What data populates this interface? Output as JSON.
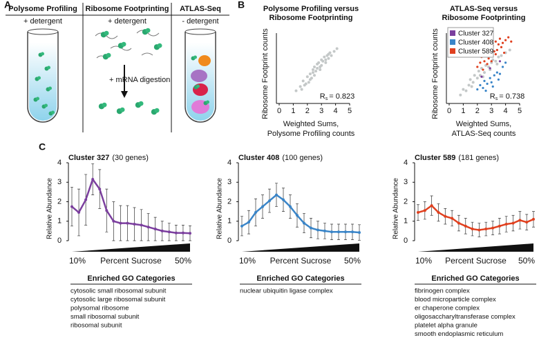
{
  "panel_labels": [
    "A",
    "B",
    "C"
  ],
  "diagram": {
    "columns": [
      {
        "title": "Polysome Profiling",
        "condition": "+ detergent"
      },
      {
        "title": "Ribosome Footprinting",
        "condition": "+ detergent",
        "step": "+ mRNA digestion"
      },
      {
        "title": "ATLAS-Seq",
        "condition": "- detergent"
      }
    ]
  },
  "chart_data": [
    {
      "type": "scatter",
      "title": [
        "Polysome Profiling versus",
        "Ribosome Footprinting"
      ],
      "xlabel": [
        "Weighted Sums,",
        "Polysome Profiling counts"
      ],
      "ylabel": "Ribosome Footprint counts",
      "xlim": [
        0,
        5
      ],
      "xticks": [
        0,
        1,
        2,
        3,
        4,
        5
      ],
      "ylim": [
        0,
        5
      ],
      "annotation": {
        "symbol": "R",
        "subscript": "s",
        "text": "= 0.823"
      },
      "series": [
        {
          "color": "#c4c8c8",
          "x": [
            1.2,
            1.5,
            1.7,
            1.8,
            2.0,
            2.1,
            2.2,
            2.3,
            2.4,
            2.5,
            2.5,
            2.6,
            2.7,
            2.8,
            2.9,
            3.0,
            3.0,
            3.1,
            3.2,
            3.3,
            3.4,
            3.5,
            3.6,
            3.7,
            3.9,
            4.1,
            2.2,
            2.7,
            3.3,
            1.9,
            2.4,
            2.9,
            3.5,
            1.6
          ],
          "values": [
            0.9,
            1.2,
            1.6,
            1.3,
            1.9,
            1.5,
            2.1,
            1.8,
            2.4,
            2.0,
            2.6,
            2.3,
            2.5,
            2.9,
            2.6,
            3.1,
            2.7,
            3.0,
            3.3,
            2.9,
            3.4,
            3.2,
            3.6,
            3.4,
            3.7,
            3.9,
            1.7,
            2.8,
            3.1,
            1.4,
            2.2,
            2.4,
            3.5,
            1.0
          ]
        }
      ]
    },
    {
      "type": "scatter",
      "title": [
        "ATLAS-Seq versus",
        "Ribosome Footprinting"
      ],
      "xlabel": [
        "Weighted Sums,",
        "ATLAS-Seq counts"
      ],
      "ylabel": "Ribosome Footprint counts",
      "xlim": [
        0,
        5
      ],
      "xticks": [
        0,
        1,
        2,
        3,
        4,
        5
      ],
      "ylim": [
        0,
        5
      ],
      "legend": "upper left",
      "annotation": {
        "symbol": "R",
        "subscript": "s",
        "text": "= 0.738"
      },
      "series": [
        {
          "color": "#c4c8c8",
          "x": [
            0.8,
            1.0,
            1.2,
            1.4,
            1.5,
            1.7,
            1.8,
            2.0,
            2.1,
            2.2,
            2.3,
            2.5,
            2.6,
            2.8,
            3.0,
            3.1,
            3.3,
            3.5,
            3.7,
            4.0,
            1.6,
            2.4,
            2.9,
            3.4,
            4.3
          ],
          "values": [
            0.6,
            1.0,
            0.9,
            1.3,
            1.7,
            1.5,
            2.0,
            1.8,
            2.3,
            2.0,
            2.5,
            2.2,
            2.7,
            2.6,
            2.9,
            3.1,
            3.0,
            3.3,
            3.4,
            3.6,
            1.2,
            1.9,
            2.4,
            2.8,
            3.8
          ]
        },
        {
          "name": "Cluster 327",
          "color": "#7b3f9e",
          "x": [
            2.3,
            2.9,
            3.6
          ],
          "values": [
            1.9,
            2.5,
            3.0
          ]
        },
        {
          "name": "Cluster 408",
          "color": "#3a85c8",
          "x": [
            2.0,
            2.2,
            2.4,
            2.5,
            2.7,
            2.9,
            3.0,
            3.2,
            3.4,
            3.6,
            3.8,
            4.0,
            2.6,
            3.1,
            3.5
          ],
          "values": [
            1.0,
            1.3,
            1.1,
            1.6,
            1.4,
            1.8,
            1.5,
            2.0,
            2.2,
            2.1,
            2.6,
            2.9,
            0.9,
            1.2,
            1.7
          ]
        },
        {
          "name": "Cluster 589",
          "color": "#e0401f",
          "x": [
            2.0,
            2.2,
            2.3,
            2.5,
            2.6,
            2.8,
            2.9,
            3.0,
            3.1,
            3.2,
            3.3,
            3.4,
            3.5,
            3.6,
            3.7,
            3.8,
            4.0,
            4.2,
            4.4,
            2.4,
            2.7,
            3.0,
            3.3,
            3.9
          ],
          "values": [
            2.6,
            2.9,
            3.3,
            3.0,
            3.6,
            3.2,
            3.9,
            3.4,
            4.1,
            3.7,
            4.4,
            3.8,
            4.2,
            4.6,
            4.0,
            4.3,
            4.5,
            4.7,
            4.4,
            2.4,
            2.8,
            3.0,
            3.5,
            3.6
          ]
        }
      ]
    },
    {
      "type": "line",
      "title": "Cluster 327",
      "subtitle": "(30 genes)",
      "color": "#7b3f9e",
      "ylabel": "Relative Abundance",
      "xlabel": "Percent Sucrose",
      "categories": [
        "10%",
        null,
        null,
        null,
        null,
        null,
        null,
        null,
        null,
        null,
        null,
        null,
        null,
        null,
        null,
        null,
        null,
        "50%"
      ],
      "values": [
        1.75,
        1.45,
        2.1,
        3.15,
        2.65,
        1.55,
        1.0,
        0.9,
        0.9,
        0.85,
        0.8,
        0.7,
        0.6,
        0.5,
        0.45,
        0.4,
        0.4,
        0.38
      ],
      "errors": [
        1.0,
        1.2,
        1.3,
        0.8,
        1.0,
        1.1,
        1.0,
        0.9,
        0.9,
        0.85,
        0.8,
        0.7,
        0.6,
        0.5,
        0.45,
        0.4,
        0.4,
        0.38
      ],
      "ylim": [
        0,
        4
      ],
      "yticks": [
        0,
        1,
        2,
        3,
        4
      ]
    },
    {
      "type": "line",
      "title": "Cluster 408",
      "subtitle": "(100 genes)",
      "color": "#3a85c8",
      "ylabel": "Relative Abundance",
      "xlabel": "Percent Sucrose",
      "categories": [
        "10%",
        null,
        null,
        null,
        null,
        null,
        null,
        null,
        null,
        null,
        null,
        null,
        null,
        null,
        null,
        null,
        null,
        "50%"
      ],
      "values": [
        0.75,
        0.95,
        1.45,
        1.75,
        2.05,
        2.35,
        2.1,
        1.75,
        1.3,
        0.9,
        0.65,
        0.55,
        0.5,
        0.45,
        0.45,
        0.45,
        0.45,
        0.42
      ],
      "errors": [
        0.5,
        0.6,
        0.7,
        0.6,
        0.6,
        0.6,
        0.6,
        0.6,
        0.6,
        0.5,
        0.5,
        0.45,
        0.4,
        0.4,
        0.4,
        0.4,
        0.4,
        0.4
      ],
      "ylim": [
        0,
        4
      ],
      "yticks": [
        0,
        1,
        2,
        3,
        4
      ]
    },
    {
      "type": "line",
      "title": "Cluster 589",
      "subtitle": "(181 genes)",
      "color": "#e0401f",
      "ylabel": "Relative Abundance",
      "xlabel": "Percent Sucrose",
      "categories": [
        "10%",
        null,
        null,
        null,
        null,
        null,
        null,
        null,
        null,
        null,
        null,
        null,
        null,
        null,
        null,
        null,
        null,
        "50%"
      ],
      "values": [
        1.45,
        1.55,
        1.8,
        1.45,
        1.25,
        1.15,
        0.9,
        0.75,
        0.6,
        0.55,
        0.6,
        0.65,
        0.75,
        0.85,
        0.9,
        1.05,
        0.95,
        1.1
      ],
      "errors": [
        0.4,
        0.45,
        0.5,
        0.45,
        0.4,
        0.4,
        0.4,
        0.4,
        0.35,
        0.35,
        0.35,
        0.35,
        0.4,
        0.4,
        0.4,
        0.45,
        0.4,
        0.4
      ],
      "ylim": [
        0,
        4
      ],
      "yticks": [
        0,
        1,
        2,
        3,
        4
      ]
    }
  ],
  "go_categories": [
    {
      "title": "Enriched GO Categories",
      "items": [
        "cytosolic small ribosomal subunit",
        "cytosolic large ribosomal subunit",
        "polysomal ribosome",
        "small ribosomal subunit",
        "ribosomal subunit"
      ]
    },
    {
      "title": "Enriched GO Categories",
      "items": [
        "nuclear ubiquitin ligase complex"
      ]
    },
    {
      "title": "Enriched GO Categories",
      "items": [
        "fibrinogen complex",
        "blood microparticle complex",
        "er chaperone complex",
        "oligosaccharyltransferase complex",
        "platelet alpha granule",
        "smooth endoplasmic reticulum"
      ]
    }
  ]
}
